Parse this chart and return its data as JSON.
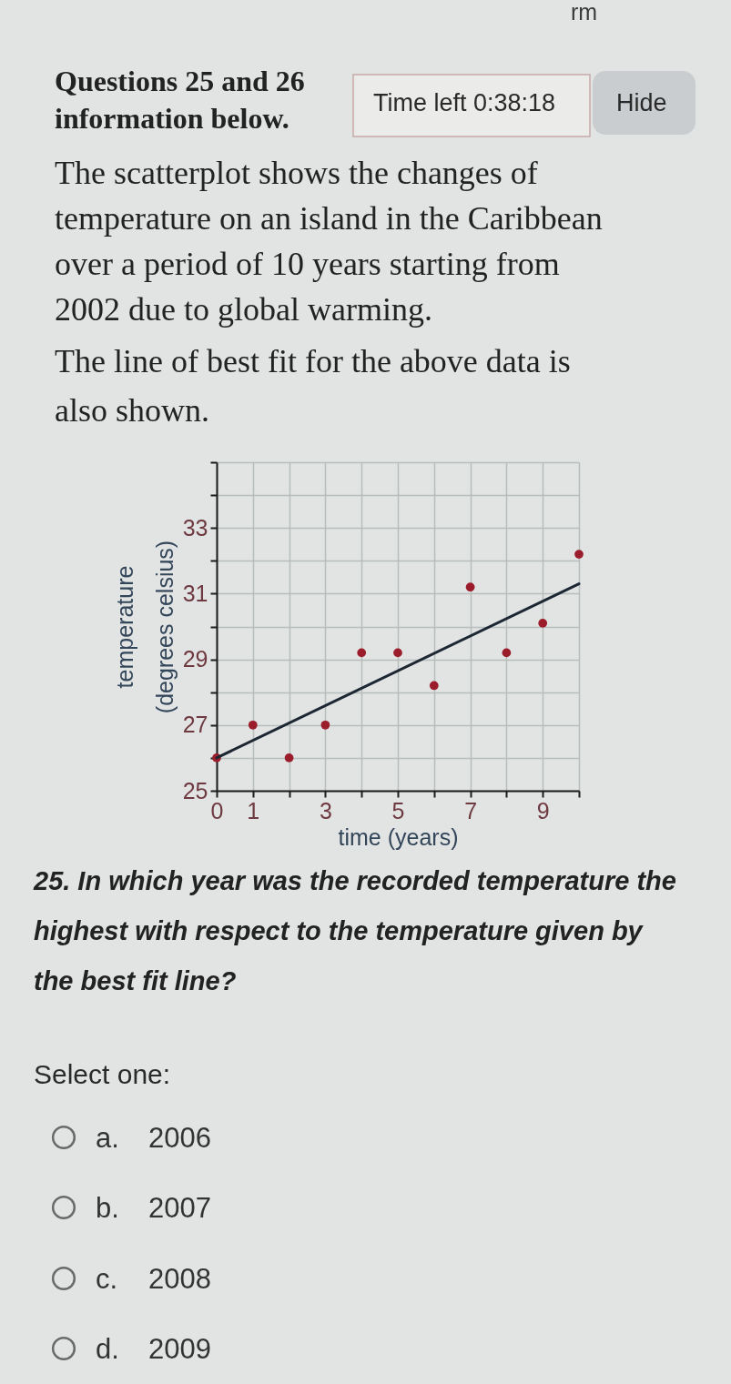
{
  "chart_data": {
    "type": "scatter",
    "xlabel": "time (years)",
    "ylabel": "temperature (degrees celsius)",
    "annotations": [
      "rm",
      "Questions 25 and 26",
      "information below.",
      "Time left 0:38:18",
      "Hide",
      "The scatterplot shows the changes of temperature on an island in the Caribbean over a period of 10 years starting from 2002 due to global warming.",
      "The line of best fit for the above data is also shown.",
      "25. In which year was the recorded temperature the highest with respect to the temperature given by the best fit line?",
      "Select one:",
      "a. 2006",
      "b. 2007",
      "c. 2008",
      "d. 2009"
    ],
    "xlim": [
      0,
      10
    ],
    "ylim": [
      25,
      35
    ],
    "xticks": [
      0,
      1,
      {
        "value": 2,
        "label": null
      },
      3,
      {
        "value": 4,
        "label": null
      },
      5,
      {
        "value": 6,
        "label": null
      },
      7,
      {
        "value": 8,
        "label": null
      },
      9,
      {
        "value": 10,
        "label": null
      }
    ],
    "yticks": [
      25,
      {
        "value": 26,
        "label": null
      },
      27,
      {
        "value": 28,
        "label": null
      },
      29,
      {
        "value": 30,
        "label": null
      },
      31,
      {
        "value": 32,
        "label": null
      },
      33,
      {
        "value": 34,
        "label": null
      },
      {
        "value": 35,
        "label": null
      }
    ],
    "grid": true,
    "marker": "circle",
    "series": [
      {
        "color": "#9b1c2b",
        "x": [
          0,
          1,
          2,
          3,
          4,
          5,
          6,
          7,
          8,
          9,
          10
        ],
        "values": [
          26,
          27,
          26,
          27,
          29.2,
          29.2,
          28.2,
          31.2,
          29.2,
          30.1,
          32.2
        ]
      },
      {
        "type": "line",
        "color": "#1d2733",
        "marker": "none",
        "line_style": "solid",
        "x": [
          0,
          10
        ],
        "values": [
          26,
          31.3
        ]
      }
    ]
  }
}
